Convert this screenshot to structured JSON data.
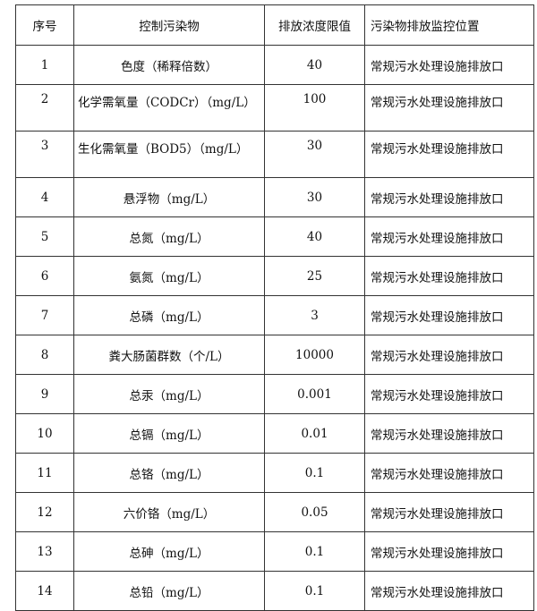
{
  "headers": [
    "序号",
    "控制污染物",
    "排放浓度限值",
    "污染物排放监控位置"
  ],
  "rows": [
    {
      "no": "1",
      "pollutant": "色度（稀释倍数）",
      "limit": "40",
      "location": "常规污水处理设施排放口"
    },
    {
      "no": "2",
      "pollutant": "化学需氧量（CODCr）（mg/L）",
      "limit": "100",
      "location": "常规污水处理设施排放口"
    },
    {
      "no": "3",
      "pollutant": "生化需氧量（BOD5）（mg/L）",
      "limit": "30",
      "location": "常规污水处理设施排放口"
    },
    {
      "no": "4",
      "pollutant": "悬浮物（mg/L）",
      "limit": "30",
      "location": "常规污水处理设施排放口"
    },
    {
      "no": "5",
      "pollutant": "总氮（mg/L）",
      "limit": "40",
      "location": "常规污水处理设施排放口"
    },
    {
      "no": "6",
      "pollutant": "氨氮（mg/L）",
      "limit": "25",
      "location": "常规污水处理设施排放口"
    },
    {
      "no": "7",
      "pollutant": "总磷（mg/L）",
      "limit": "3",
      "location": "常规污水处理设施排放口"
    },
    {
      "no": "8",
      "pollutant": "粪大肠菌群数（个/L）",
      "limit": "10000",
      "location": "常规污水处理设施排放口"
    },
    {
      "no": "9",
      "pollutant": "总汞（mg/L）",
      "limit": "0.001",
      "location": "常规污水处理设施排放口"
    },
    {
      "no": "10",
      "pollutant": "总镉（mg/L）",
      "limit": "0.01",
      "location": "常规污水处理设施排放口"
    },
    {
      "no": "11",
      "pollutant": "总铬（mg/L）",
      "limit": "0.1",
      "location": "常规污水处理设施排放口"
    },
    {
      "no": "12",
      "pollutant": "六价铬（mg/L）",
      "limit": "0.05",
      "location": "常规污水处理设施排放口"
    },
    {
      "no": "13",
      "pollutant": "总砷（mg/L）",
      "limit": "0.1",
      "location": "常规污水处理设施排放口"
    },
    {
      "no": "14",
      "pollutant": "总铅（mg/L）",
      "limit": "0.1",
      "location": "常规污水处理设施排放口"
    }
  ]
}
